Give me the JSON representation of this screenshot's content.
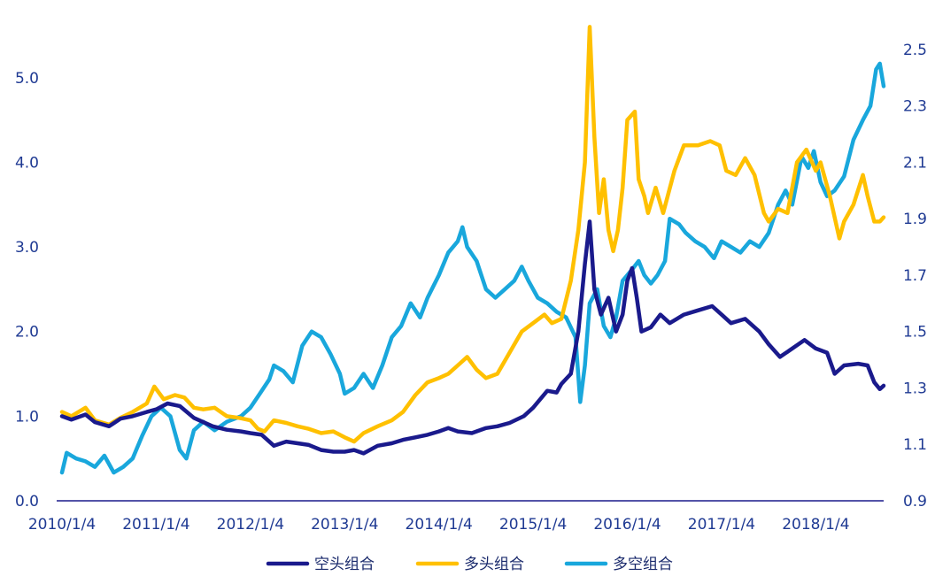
{
  "chart_data": {
    "type": "line",
    "title": "",
    "xlabel": "",
    "ylabel": "",
    "x_ticks": [
      "2010/1/4",
      "2011/1/4",
      "2012/1/4",
      "2013/1/4",
      "2014/1/4",
      "2015/1/4",
      "2016/1/4",
      "2017/1/4",
      "2018/1/4"
    ],
    "y_left": {
      "lim": [
        0,
        5.5
      ],
      "ticks": [
        "0.0",
        "1.0",
        "2.0",
        "3.0",
        "4.0",
        "5.0"
      ]
    },
    "y_right": {
      "lim": [
        0.9,
        2.55
      ],
      "ticks": [
        "0.9",
        "1.1",
        "1.3",
        "1.5",
        "1.7",
        "1.9",
        "2.1",
        "2.3",
        "2.5"
      ]
    },
    "grid": false,
    "legend": "bottom",
    "series": [
      {
        "name": "空头组合",
        "axis": "left",
        "color": "#1a1a8c",
        "points": [
          [
            2010.0,
            1.0
          ],
          [
            2010.1,
            0.96
          ],
          [
            2010.25,
            1.02
          ],
          [
            2010.35,
            0.93
          ],
          [
            2010.5,
            0.88
          ],
          [
            2010.62,
            0.97
          ],
          [
            2010.75,
            1.0
          ],
          [
            2010.9,
            1.05
          ],
          [
            2011.0,
            1.08
          ],
          [
            2011.12,
            1.15
          ],
          [
            2011.25,
            1.12
          ],
          [
            2011.4,
            0.98
          ],
          [
            2011.5,
            0.93
          ],
          [
            2011.6,
            0.88
          ],
          [
            2011.75,
            0.84
          ],
          [
            2011.9,
            0.82
          ],
          [
            2012.0,
            0.8
          ],
          [
            2012.12,
            0.78
          ],
          [
            2012.25,
            0.65
          ],
          [
            2012.38,
            0.7
          ],
          [
            2012.5,
            0.68
          ],
          [
            2012.62,
            0.66
          ],
          [
            2012.75,
            0.6
          ],
          [
            2012.88,
            0.58
          ],
          [
            2013.0,
            0.58
          ],
          [
            2013.1,
            0.6
          ],
          [
            2013.2,
            0.56
          ],
          [
            2013.35,
            0.65
          ],
          [
            2013.5,
            0.68
          ],
          [
            2013.62,
            0.72
          ],
          [
            2013.75,
            0.75
          ],
          [
            2013.88,
            0.78
          ],
          [
            2014.0,
            0.82
          ],
          [
            2014.1,
            0.86
          ],
          [
            2014.2,
            0.82
          ],
          [
            2014.35,
            0.8
          ],
          [
            2014.5,
            0.86
          ],
          [
            2014.62,
            0.88
          ],
          [
            2014.75,
            0.92
          ],
          [
            2014.9,
            1.0
          ],
          [
            2015.0,
            1.1
          ],
          [
            2015.15,
            1.3
          ],
          [
            2015.25,
            1.28
          ],
          [
            2015.3,
            1.38
          ],
          [
            2015.4,
            1.5
          ],
          [
            2015.48,
            2.0
          ],
          [
            2015.55,
            2.8
          ],
          [
            2015.6,
            3.3
          ],
          [
            2015.65,
            2.5
          ],
          [
            2015.72,
            2.2
          ],
          [
            2015.8,
            2.4
          ],
          [
            2015.88,
            2.0
          ],
          [
            2015.95,
            2.2
          ],
          [
            2016.0,
            2.6
          ],
          [
            2016.05,
            2.75
          ],
          [
            2016.1,
            2.4
          ],
          [
            2016.15,
            2.0
          ],
          [
            2016.25,
            2.05
          ],
          [
            2016.35,
            2.2
          ],
          [
            2016.45,
            2.1
          ],
          [
            2016.6,
            2.2
          ],
          [
            2016.75,
            2.25
          ],
          [
            2016.9,
            2.3
          ],
          [
            2017.0,
            2.2
          ],
          [
            2017.1,
            2.1
          ],
          [
            2017.25,
            2.15
          ],
          [
            2017.4,
            2.0
          ],
          [
            2017.5,
            1.85
          ],
          [
            2017.62,
            1.7
          ],
          [
            2017.75,
            1.8
          ],
          [
            2017.88,
            1.9
          ],
          [
            2018.0,
            1.8
          ],
          [
            2018.12,
            1.75
          ],
          [
            2018.2,
            1.5
          ],
          [
            2018.3,
            1.6
          ],
          [
            2018.45,
            1.62
          ],
          [
            2018.55,
            1.6
          ],
          [
            2018.62,
            1.4
          ],
          [
            2018.68,
            1.32
          ],
          [
            2018.72,
            1.36
          ]
        ]
      },
      {
        "name": "多头组合",
        "axis": "left",
        "color": "#ffc000",
        "points": [
          [
            2010.0,
            1.05
          ],
          [
            2010.1,
            1.0
          ],
          [
            2010.25,
            1.1
          ],
          [
            2010.35,
            0.95
          ],
          [
            2010.5,
            0.9
          ],
          [
            2010.62,
            0.98
          ],
          [
            2010.75,
            1.05
          ],
          [
            2010.9,
            1.15
          ],
          [
            2010.98,
            1.35
          ],
          [
            2011.08,
            1.2
          ],
          [
            2011.2,
            1.25
          ],
          [
            2011.3,
            1.22
          ],
          [
            2011.4,
            1.1
          ],
          [
            2011.5,
            1.08
          ],
          [
            2011.62,
            1.1
          ],
          [
            2011.75,
            1.0
          ],
          [
            2011.88,
            0.98
          ],
          [
            2012.0,
            0.95
          ],
          [
            2012.08,
            0.85
          ],
          [
            2012.15,
            0.82
          ],
          [
            2012.25,
            0.95
          ],
          [
            2012.38,
            0.92
          ],
          [
            2012.5,
            0.88
          ],
          [
            2012.62,
            0.85
          ],
          [
            2012.75,
            0.8
          ],
          [
            2012.88,
            0.82
          ],
          [
            2013.0,
            0.75
          ],
          [
            2013.1,
            0.7
          ],
          [
            2013.2,
            0.8
          ],
          [
            2013.35,
            0.88
          ],
          [
            2013.5,
            0.95
          ],
          [
            2013.62,
            1.05
          ],
          [
            2013.75,
            1.25
          ],
          [
            2013.88,
            1.4
          ],
          [
            2014.0,
            1.45
          ],
          [
            2014.1,
            1.5
          ],
          [
            2014.2,
            1.6
          ],
          [
            2014.3,
            1.7
          ],
          [
            2014.4,
            1.55
          ],
          [
            2014.5,
            1.45
          ],
          [
            2014.62,
            1.5
          ],
          [
            2014.75,
            1.75
          ],
          [
            2014.88,
            2.0
          ],
          [
            2015.0,
            2.1
          ],
          [
            2015.12,
            2.2
          ],
          [
            2015.2,
            2.1
          ],
          [
            2015.3,
            2.15
          ],
          [
            2015.4,
            2.6
          ],
          [
            2015.48,
            3.2
          ],
          [
            2015.55,
            4.0
          ],
          [
            2015.6,
            5.6
          ],
          [
            2015.65,
            4.3
          ],
          [
            2015.7,
            3.4
          ],
          [
            2015.75,
            3.8
          ],
          [
            2015.8,
            3.2
          ],
          [
            2015.85,
            2.95
          ],
          [
            2015.9,
            3.2
          ],
          [
            2015.95,
            3.7
          ],
          [
            2016.0,
            4.5
          ],
          [
            2016.08,
            4.6
          ],
          [
            2016.12,
            3.8
          ],
          [
            2016.18,
            3.6
          ],
          [
            2016.22,
            3.4
          ],
          [
            2016.3,
            3.7
          ],
          [
            2016.38,
            3.4
          ],
          [
            2016.5,
            3.9
          ],
          [
            2016.6,
            4.2
          ],
          [
            2016.75,
            4.2
          ],
          [
            2016.88,
            4.25
          ],
          [
            2016.98,
            4.2
          ],
          [
            2017.05,
            3.9
          ],
          [
            2017.15,
            3.85
          ],
          [
            2017.25,
            4.05
          ],
          [
            2017.35,
            3.85
          ],
          [
            2017.45,
            3.4
          ],
          [
            2017.5,
            3.3
          ],
          [
            2017.6,
            3.45
          ],
          [
            2017.7,
            3.4
          ],
          [
            2017.8,
            4.0
          ],
          [
            2017.9,
            4.15
          ],
          [
            2018.0,
            3.9
          ],
          [
            2018.05,
            4.0
          ],
          [
            2018.15,
            3.6
          ],
          [
            2018.25,
            3.1
          ],
          [
            2018.3,
            3.3
          ],
          [
            2018.4,
            3.5
          ],
          [
            2018.5,
            3.85
          ],
          [
            2018.55,
            3.6
          ],
          [
            2018.62,
            3.3
          ],
          [
            2018.68,
            3.3
          ],
          [
            2018.72,
            3.35
          ]
        ]
      },
      {
        "name": "多空组合",
        "axis": "right",
        "color": "#19a7dc",
        "points": [
          [
            2010.0,
            1.0
          ],
          [
            2010.05,
            1.07
          ],
          [
            2010.15,
            1.05
          ],
          [
            2010.25,
            1.04
          ],
          [
            2010.35,
            1.02
          ],
          [
            2010.45,
            1.06
          ],
          [
            2010.55,
            1.0
          ],
          [
            2010.65,
            1.02
          ],
          [
            2010.75,
            1.05
          ],
          [
            2010.85,
            1.13
          ],
          [
            2010.95,
            1.2
          ],
          [
            2011.05,
            1.23
          ],
          [
            2011.15,
            1.2
          ],
          [
            2011.25,
            1.08
          ],
          [
            2011.32,
            1.05
          ],
          [
            2011.4,
            1.15
          ],
          [
            2011.5,
            1.18
          ],
          [
            2011.62,
            1.15
          ],
          [
            2011.75,
            1.18
          ],
          [
            2011.9,
            1.2
          ],
          [
            2012.0,
            1.23
          ],
          [
            2012.1,
            1.28
          ],
          [
            2012.2,
            1.33
          ],
          [
            2012.25,
            1.38
          ],
          [
            2012.35,
            1.36
          ],
          [
            2012.45,
            1.32
          ],
          [
            2012.55,
            1.45
          ],
          [
            2012.65,
            1.5
          ],
          [
            2012.75,
            1.48
          ],
          [
            2012.85,
            1.42
          ],
          [
            2012.95,
            1.35
          ],
          [
            2013.0,
            1.28
          ],
          [
            2013.1,
            1.3
          ],
          [
            2013.2,
            1.35
          ],
          [
            2013.3,
            1.3
          ],
          [
            2013.4,
            1.38
          ],
          [
            2013.5,
            1.48
          ],
          [
            2013.6,
            1.52
          ],
          [
            2013.7,
            1.6
          ],
          [
            2013.8,
            1.55
          ],
          [
            2013.88,
            1.62
          ],
          [
            2014.0,
            1.7
          ],
          [
            2014.1,
            1.78
          ],
          [
            2014.2,
            1.82
          ],
          [
            2014.25,
            1.87
          ],
          [
            2014.3,
            1.8
          ],
          [
            2014.4,
            1.75
          ],
          [
            2014.5,
            1.65
          ],
          [
            2014.6,
            1.62
          ],
          [
            2014.7,
            1.65
          ],
          [
            2014.8,
            1.68
          ],
          [
            2014.88,
            1.73
          ],
          [
            2014.95,
            1.68
          ],
          [
            2015.05,
            1.62
          ],
          [
            2015.15,
            1.6
          ],
          [
            2015.25,
            1.57
          ],
          [
            2015.35,
            1.55
          ],
          [
            2015.45,
            1.48
          ],
          [
            2015.5,
            1.25
          ],
          [
            2015.55,
            1.38
          ],
          [
            2015.6,
            1.6
          ],
          [
            2015.68,
            1.65
          ],
          [
            2015.75,
            1.52
          ],
          [
            2015.82,
            1.48
          ],
          [
            2015.88,
            1.55
          ],
          [
            2015.95,
            1.68
          ],
          [
            2016.05,
            1.72
          ],
          [
            2016.12,
            1.75
          ],
          [
            2016.18,
            1.7
          ],
          [
            2016.25,
            1.67
          ],
          [
            2016.32,
            1.7
          ],
          [
            2016.4,
            1.75
          ],
          [
            2016.45,
            1.9
          ],
          [
            2016.55,
            1.88
          ],
          [
            2016.62,
            1.85
          ],
          [
            2016.72,
            1.82
          ],
          [
            2016.82,
            1.8
          ],
          [
            2016.92,
            1.76
          ],
          [
            2017.0,
            1.82
          ],
          [
            2017.1,
            1.8
          ],
          [
            2017.2,
            1.78
          ],
          [
            2017.3,
            1.82
          ],
          [
            2017.4,
            1.8
          ],
          [
            2017.5,
            1.85
          ],
          [
            2017.6,
            1.95
          ],
          [
            2017.68,
            2.0
          ],
          [
            2017.75,
            1.95
          ],
          [
            2017.85,
            2.12
          ],
          [
            2017.92,
            2.08
          ],
          [
            2017.98,
            2.14
          ],
          [
            2018.05,
            2.03
          ],
          [
            2018.12,
            1.98
          ],
          [
            2018.2,
            2.0
          ],
          [
            2018.3,
            2.05
          ],
          [
            2018.4,
            2.18
          ],
          [
            2018.5,
            2.25
          ],
          [
            2018.58,
            2.3
          ],
          [
            2018.64,
            2.43
          ],
          [
            2018.68,
            2.45
          ],
          [
            2018.72,
            2.37
          ]
        ]
      }
    ]
  }
}
